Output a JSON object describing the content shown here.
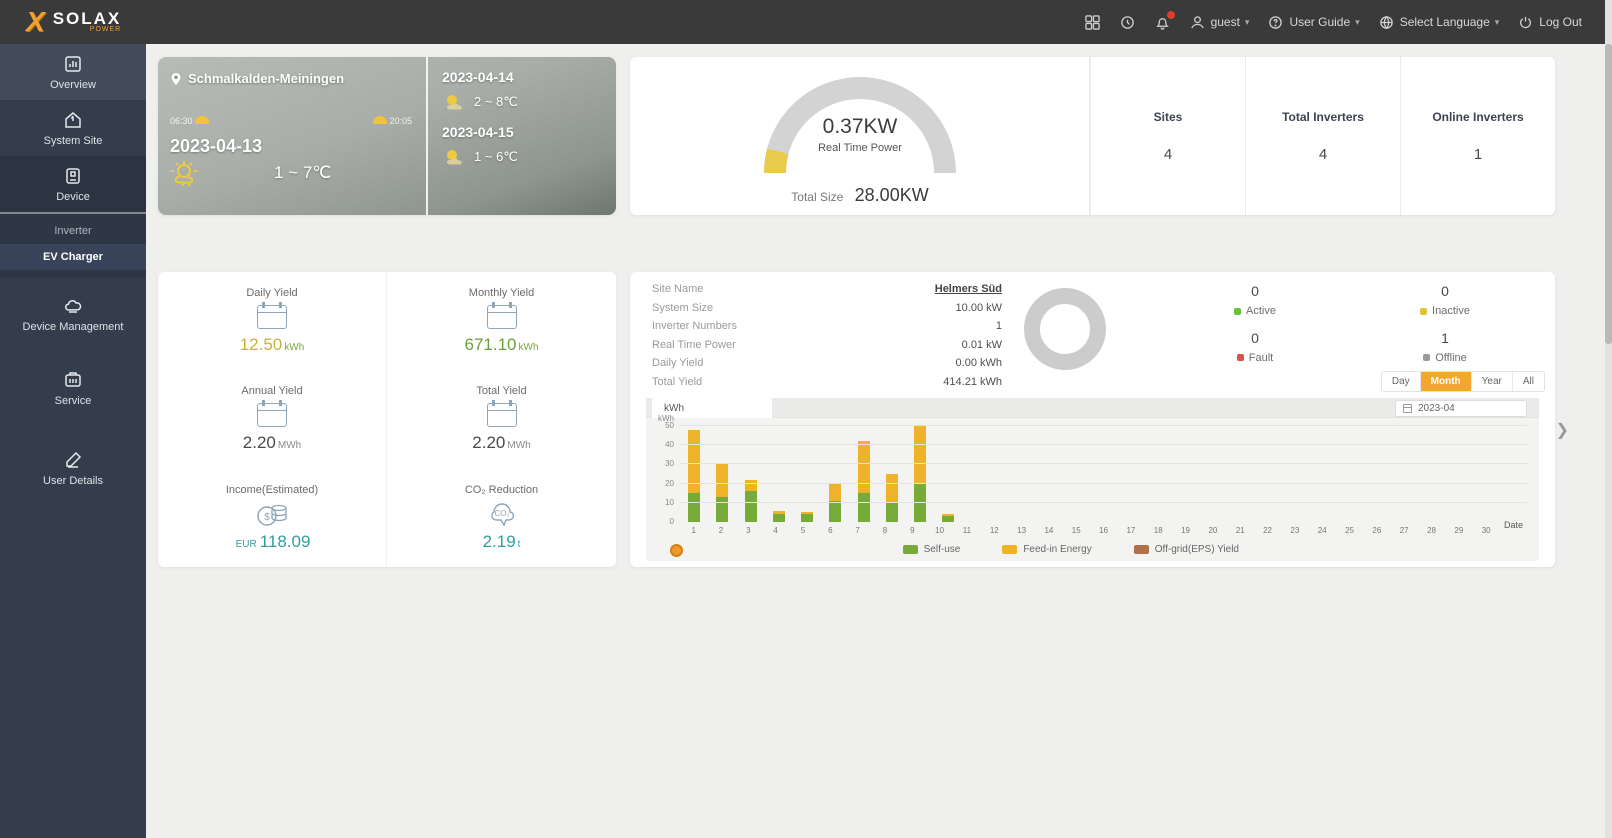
{
  "brand": {
    "x_mark": "X",
    "name": "SOLAX",
    "sub": "POWER"
  },
  "topbar": {
    "user": "guest",
    "user_guide": "User Guide",
    "select_language": "Select Language",
    "logout": "Log Out",
    "caret": "▾"
  },
  "sidebar": {
    "items": {
      "overview": "Overview",
      "system_site": "System Site",
      "device": "Device",
      "device_management": "Device Management",
      "service": "Service",
      "user_details": "User Details"
    },
    "device_children": {
      "inverter": "Inverter",
      "ev_charger": "EV Charger"
    }
  },
  "weather": {
    "location": "Schmalkalden-Meiningen",
    "sunrise": "06:30",
    "sunset": "20:05",
    "today_date": "2023-04-13",
    "today_temp": "1 ~ 7℃",
    "forecast": {
      "d1_date": "2023-04-14",
      "d1_temp": "2 ~ 8℃",
      "d2_date": "2023-04-15",
      "d2_temp": "1 ~ 6℃"
    }
  },
  "gauge": {
    "power_value": "0.37KW",
    "power_caption": "Real Time Power",
    "total_label": "Total Size",
    "total_value": "28.00KW",
    "accent_color": "#e9cb4d",
    "track_color": "#d3d3d3"
  },
  "fleet_stats": {
    "sites_label": "Sites",
    "sites_value": "4",
    "total_inv_label": "Total Inverters",
    "total_inv_value": "4",
    "online_inv_label": "Online Inverters",
    "online_inv_value": "1"
  },
  "yield_cards": {
    "daily": {
      "label": "Daily Yield",
      "value": "12.50",
      "unit": "kWh",
      "value_color": "#c9b13a",
      "unit_color": "#7ba43c"
    },
    "monthly": {
      "label": "Monthly Yield",
      "value": "671.10",
      "unit": "kWh",
      "value_color": "#67a139",
      "unit_color": "#7ba43c"
    },
    "annual": {
      "label": "Annual Yield",
      "value": "2.20",
      "unit": "MWh",
      "value_color": "#4a4a4a",
      "unit_color": "#8a8a8a"
    },
    "total": {
      "label": "Total Yield",
      "value": "2.20",
      "unit": "MWh",
      "value_color": "#4a4a4a",
      "unit_color": "#8a8a8a"
    },
    "income": {
      "label": "Income(Estimated)",
      "prefix": "EUR",
      "value": "118.09",
      "value_color": "#2f9e9e"
    },
    "co2": {
      "label": "CO₂ Reduction",
      "value": "2.19",
      "unit": "t",
      "value_color": "#2f9e9e",
      "unit_color": "#2f9e9e"
    }
  },
  "site_detail": {
    "rows": {
      "site_name_label": "Site Name",
      "site_name_value": "Helmers Süd",
      "system_size_label": "System Size",
      "system_size_value": "10.00 kW",
      "inverter_numbers_label": "Inverter Numbers",
      "inverter_numbers_value": "1",
      "real_time_power_label": "Real Time Power",
      "real_time_power_value": "0.01 kW",
      "daily_yield_label": "Daily Yield",
      "daily_yield_value": "0.00 kWh",
      "total_yield_label": "Total Yield",
      "total_yield_value": "414.21 kWh"
    },
    "statuses": {
      "active": {
        "label": "Active",
        "count": "0",
        "color": "#67c23a"
      },
      "inactive": {
        "label": "Inactive",
        "count": "0",
        "color": "#dfc13c"
      },
      "fault": {
        "label": "Fault",
        "count": "0",
        "color": "#d9534f"
      },
      "offline": {
        "label": "Offline",
        "count": "1",
        "color": "#9a9a9a"
      }
    },
    "donut_color": "#cccccc"
  },
  "period_tabs": {
    "day": "Day",
    "month": "Month",
    "year": "Year",
    "all": "All",
    "selected": "Month"
  },
  "date_picker": {
    "value": "2023-04"
  },
  "chart_data": {
    "type": "bar",
    "stacked": true,
    "tab_label": "kWh",
    "y_unit": "kWh",
    "xlabel": "Date",
    "ylim": [
      0,
      50
    ],
    "y_ticks": [
      0,
      10,
      20,
      30,
      40,
      50
    ],
    "grid": true,
    "legend_position": "bottom-right",
    "categories": [
      "1",
      "2",
      "3",
      "4",
      "5",
      "6",
      "7",
      "8",
      "9",
      "10",
      "11",
      "12",
      "13",
      "14",
      "15",
      "16",
      "17",
      "18",
      "19",
      "20",
      "21",
      "22",
      "23",
      "24",
      "25",
      "26",
      "27",
      "28",
      "29",
      "30"
    ],
    "series": [
      {
        "name": "Self-use",
        "color": "#76ab3a",
        "values": [
          15,
          13,
          16,
          4,
          4,
          11,
          15,
          10,
          20,
          3,
          0,
          0,
          0,
          0,
          0,
          0,
          0,
          0,
          0,
          0,
          0,
          0,
          0,
          0,
          0,
          0,
          0,
          0,
          0,
          0
        ]
      },
      {
        "name": "Feed-in Energy",
        "color": "#efb32a",
        "values": [
          33,
          17,
          6,
          2,
          1,
          9,
          27,
          15,
          30,
          1,
          0,
          0,
          0,
          0,
          0,
          0,
          0,
          0,
          0,
          0,
          0,
          0,
          0,
          0,
          0,
          0,
          0,
          0,
          0,
          0
        ]
      },
      {
        "name": "Off-grid(EPS) Yield",
        "color": "#b1704c",
        "values": [
          0,
          0,
          0,
          0,
          0,
          0,
          0,
          0,
          0,
          0,
          0,
          0,
          0,
          0,
          0,
          0,
          0,
          0,
          0,
          0,
          0,
          0,
          0,
          0,
          0,
          0,
          0,
          0,
          0,
          0
        ]
      }
    ]
  }
}
